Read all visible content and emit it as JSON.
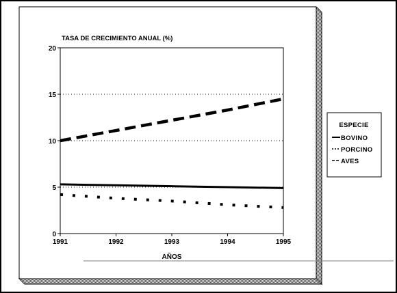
{
  "chart_data": {
    "type": "line",
    "title": "TASA DE CRECIMIENTO ANUAL (%)",
    "xlabel": "AÑOS",
    "ylabel": "",
    "x": [
      "1991",
      "1992",
      "1993",
      "1994",
      "1995"
    ],
    "xlim": [
      1991,
      1995
    ],
    "ylim": [
      0,
      20
    ],
    "yticks": [
      "0",
      "5",
      "10",
      "15",
      "20"
    ],
    "grid": "horizontal-dotted",
    "legend_position": "right",
    "legend_title": "ESPECIE",
    "series": [
      {
        "name": "BOVINO",
        "style": "solid",
        "values": [
          5.3,
          5.2,
          5.1,
          5.0,
          4.9
        ]
      },
      {
        "name": "PORCINO",
        "style": "dotted",
        "values": [
          4.2,
          3.8,
          3.5,
          3.1,
          2.8
        ]
      },
      {
        "name": "AVES",
        "style": "dashed",
        "values": [
          10.0,
          11.1,
          12.2,
          13.3,
          14.5
        ]
      }
    ]
  },
  "colors": {
    "line": "#000000",
    "shadow": "#808080",
    "background": "#ffffff"
  }
}
